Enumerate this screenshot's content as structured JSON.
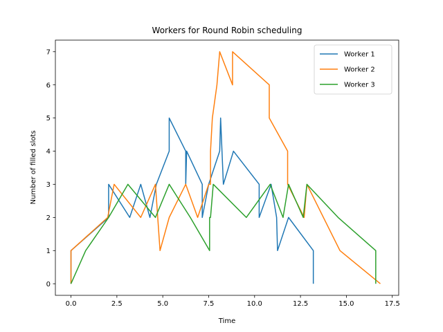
{
  "chart_data": {
    "type": "line",
    "title": "Workers for Round Robin scheduling",
    "xlabel": "Time",
    "ylabel": "Number of filled slots",
    "xlim": [
      -0.85,
      17.85
    ],
    "ylim": [
      -0.35,
      7.35
    ],
    "xticks": [
      0.0,
      2.5,
      5.0,
      7.5,
      10.0,
      12.5,
      15.0,
      17.5
    ],
    "xtick_labels": [
      "0.0",
      "2.5",
      "5.0",
      "7.5",
      "10.0",
      "12.5",
      "15.0",
      "17.5"
    ],
    "yticks": [
      0,
      1,
      2,
      3,
      4,
      5,
      6,
      7
    ],
    "ytick_labels": [
      "0",
      "1",
      "2",
      "3",
      "4",
      "5",
      "6",
      "7"
    ],
    "grid": false,
    "legend_position": "top-right",
    "series": [
      {
        "name": "Worker 1",
        "color": "#1f77b4",
        "x": [
          0.0,
          0.0,
          2.05,
          2.05,
          3.2,
          3.8,
          4.3,
          4.65,
          5.35,
          5.35,
          6.25,
          6.25,
          6.3,
          7.15,
          7.15,
          7.5,
          8.1,
          8.15,
          8.3,
          8.85,
          10.25,
          10.25,
          10.9,
          11.2,
          11.25,
          11.85,
          13.2,
          13.2
        ],
        "y": [
          0,
          1,
          2,
          3,
          2,
          3,
          2,
          3,
          4,
          5,
          4,
          3,
          4,
          3,
          2,
          3,
          4,
          5,
          3,
          4,
          3,
          2,
          3,
          2,
          1,
          2,
          1,
          0
        ]
      },
      {
        "name": "Worker 2",
        "color": "#ff7f0e",
        "x": [
          0.0,
          0.0,
          2.0,
          2.35,
          3.8,
          4.6,
          4.85,
          5.35,
          6.25,
          6.9,
          7.5,
          7.6,
          7.6,
          7.7,
          7.95,
          8.1,
          8.8,
          8.8,
          10.8,
          10.8,
          11.8,
          11.8,
          12.7,
          12.85,
          14.65,
          16.85
        ],
        "y": [
          0,
          1,
          2,
          3,
          2,
          3,
          1,
          2,
          3,
          2,
          3,
          3,
          4,
          5,
          6,
          7,
          6,
          7,
          6,
          5,
          4,
          3,
          2,
          3,
          1,
          0
        ]
      },
      {
        "name": "Worker 3",
        "color": "#2ca02c",
        "x": [
          0.0,
          0.8,
          2.05,
          3.1,
          4.6,
          5.35,
          6.5,
          7.55,
          7.55,
          7.6,
          7.75,
          9.55,
          10.85,
          11.55,
          11.85,
          12.65,
          12.85,
          14.55,
          16.6,
          16.6
        ],
        "y": [
          0,
          1,
          2,
          3,
          2,
          3,
          2,
          1,
          2,
          2,
          3,
          2,
          3,
          2,
          3,
          2,
          3,
          2,
          1,
          0
        ]
      }
    ]
  }
}
